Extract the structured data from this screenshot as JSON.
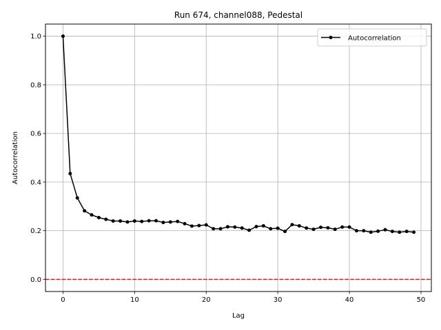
{
  "chart_data": {
    "type": "line",
    "title": "Run 674, channel088, Pedestal",
    "xlabel": "Lag",
    "ylabel": "Autocorrelation",
    "xlim": [
      -2.45,
      51.45
    ],
    "ylim": [
      -0.05,
      1.05
    ],
    "xticks": [
      0,
      10,
      20,
      30,
      40,
      50
    ],
    "yticks": [
      0.0,
      0.2,
      0.4,
      0.6,
      0.8,
      1.0
    ],
    "xtick_labels": [
      "0",
      "10",
      "20",
      "30",
      "40",
      "50"
    ],
    "ytick_labels": [
      "0.0",
      "0.2",
      "0.4",
      "0.6",
      "0.8",
      "1.0"
    ],
    "grid": true,
    "legend_position": "top-right",
    "series": [
      {
        "name": "Autocorrelation",
        "color": "#000000",
        "marker": "circle",
        "x": [
          0,
          1,
          2,
          3,
          4,
          5,
          6,
          7,
          8,
          9,
          10,
          11,
          12,
          13,
          14,
          15,
          16,
          17,
          18,
          19,
          20,
          21,
          22,
          23,
          24,
          25,
          26,
          27,
          28,
          29,
          30,
          31,
          32,
          33,
          34,
          35,
          36,
          37,
          38,
          39,
          40,
          41,
          42,
          43,
          44,
          45,
          46,
          47,
          48,
          49
        ],
        "y": [
          1.0,
          0.435,
          0.335,
          0.282,
          0.265,
          0.254,
          0.247,
          0.24,
          0.24,
          0.236,
          0.24,
          0.238,
          0.241,
          0.241,
          0.234,
          0.236,
          0.238,
          0.229,
          0.219,
          0.221,
          0.224,
          0.208,
          0.208,
          0.216,
          0.215,
          0.211,
          0.202,
          0.217,
          0.22,
          0.208,
          0.21,
          0.197,
          0.225,
          0.22,
          0.211,
          0.206,
          0.214,
          0.212,
          0.206,
          0.215,
          0.215,
          0.2,
          0.2,
          0.194,
          0.198,
          0.204,
          0.197,
          0.194,
          0.197,
          0.194
        ]
      }
    ],
    "reference_line": {
      "y": 0.0,
      "color": "#e41a1c",
      "style": "dashed"
    }
  }
}
